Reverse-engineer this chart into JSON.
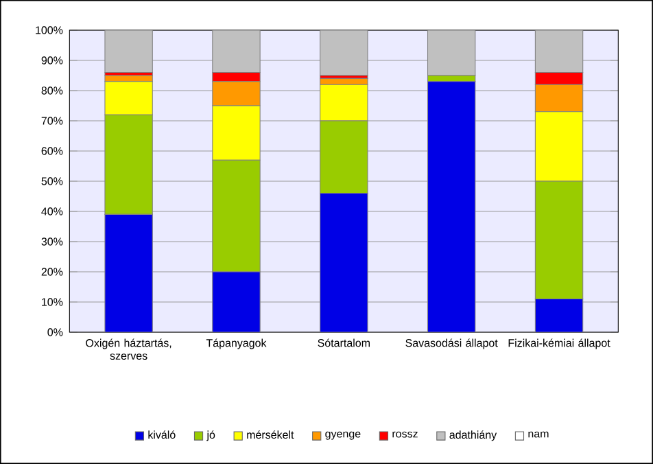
{
  "chart_data": {
    "type": "bar",
    "stacked": true,
    "grid": "y",
    "legend": "bottom",
    "categories": [
      "Oxigén háztartás, szerves",
      "Tápanyagok",
      "Sótartalom",
      "Savasodási állapot",
      "Fizikai-kémiai állapot"
    ],
    "series": [
      {
        "name": "kiváló",
        "color": "#0000e6",
        "values": [
          39,
          20,
          46,
          83,
          11
        ]
      },
      {
        "name": "jó",
        "color": "#99cc00",
        "values": [
          33,
          37,
          24,
          2,
          39
        ]
      },
      {
        "name": "mérsékelt",
        "color": "#ffff00",
        "values": [
          11,
          18,
          12,
          0,
          23
        ]
      },
      {
        "name": "gyenge",
        "color": "#ff9900",
        "values": [
          2,
          8,
          2,
          0,
          9
        ]
      },
      {
        "name": "rossz",
        "color": "#ff0000",
        "values": [
          1,
          3,
          1,
          0,
          4
        ]
      },
      {
        "name": "adathiány",
        "color": "#c0c0c0",
        "values": [
          14,
          14,
          15,
          15,
          14
        ]
      },
      {
        "name": "nam",
        "color": "#ffffff",
        "values": [
          0,
          0,
          0,
          0,
          0
        ]
      }
    ],
    "ylim": [
      0,
      100
    ],
    "yticks": [
      {
        "value": 0,
        "label": "0%"
      },
      {
        "value": 10,
        "label": "10%"
      },
      {
        "value": 20,
        "label": "20%"
      },
      {
        "value": 30,
        "label": "30%"
      },
      {
        "value": 40,
        "label": "40%"
      },
      {
        "value": 50,
        "label": "50%"
      },
      {
        "value": 60,
        "label": "60%"
      },
      {
        "value": 70,
        "label": "70%"
      },
      {
        "value": 80,
        "label": "80%"
      },
      {
        "value": 90,
        "label": "90%"
      },
      {
        "value": 100,
        "label": "100%"
      }
    ]
  }
}
